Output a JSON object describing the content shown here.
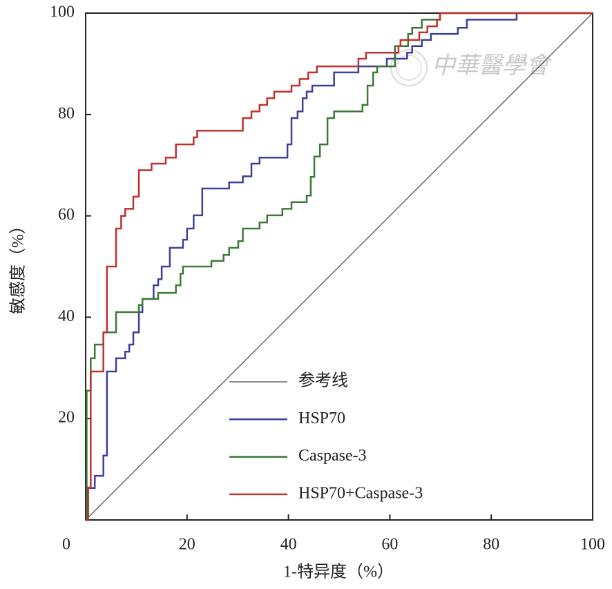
{
  "chart_data": {
    "type": "line",
    "xlabel": "1-特异度（%）",
    "ylabel": "敏感度（%）",
    "watermark": "中華醫學會",
    "xlim": [
      0,
      100
    ],
    "ylim": [
      0,
      100
    ],
    "xticks": [
      0,
      20,
      40,
      60,
      80,
      100
    ],
    "yticks": [
      20,
      40,
      60,
      80,
      100
    ],
    "legend": "lower-right",
    "series": [
      {
        "name": "参考线",
        "color": "#6e6060",
        "x": [
          0,
          100
        ],
        "y": [
          0,
          100
        ]
      },
      {
        "name": "HSP70",
        "color": "#3d3f9b",
        "x": [
          0,
          0.3,
          0.3,
          1.8,
          1.8,
          3.5,
          3.5,
          4.2,
          4.2,
          6,
          6,
          7.8,
          7.8,
          8.6,
          8.6,
          9.4,
          9.4,
          10.5,
          10.5,
          11.2,
          11.2,
          13.4,
          13.4,
          14.3,
          14.3,
          15,
          15,
          16.6,
          16.6,
          19.2,
          19.2,
          20,
          20,
          21.3,
          21.3,
          23,
          23,
          28.3,
          28.3,
          31,
          31,
          32.7,
          32.7,
          34.3,
          34.3,
          39.8,
          39.8,
          40.6,
          40.6,
          41.8,
          41.8,
          42.8,
          42.8,
          43.6,
          43.6,
          44.7,
          44.7,
          49,
          49,
          53.8,
          53.8,
          59.4,
          59.4,
          63.4,
          63.4,
          64.4,
          64.4,
          66.3,
          66.3,
          68.1,
          68.1,
          73.4,
          73.4,
          75.2,
          75.2,
          85,
          85,
          100
        ],
        "y": [
          0,
          0,
          6.3,
          6.3,
          8.7,
          8.7,
          12.7,
          12.7,
          29.3,
          29.3,
          31.9,
          31.9,
          33.2,
          33.2,
          34.6,
          34.6,
          37,
          37,
          41,
          41,
          43.6,
          43.6,
          46.3,
          46.3,
          47.5,
          47.5,
          50,
          50,
          53.7,
          53.7,
          55.3,
          55.3,
          57.5,
          57.5,
          60.1,
          60.1,
          65.4,
          65.4,
          66.6,
          66.6,
          67.8,
          67.8,
          70.3,
          70.3,
          71.5,
          71.5,
          74.1,
          74.1,
          79.3,
          79.3,
          80.6,
          80.6,
          83.2,
          83.2,
          84.5,
          84.5,
          85.7,
          85.7,
          88.3,
          88.3,
          89.5,
          89.5,
          91,
          91,
          92.2,
          92.2,
          93.5,
          93.5,
          94.7,
          94.7,
          95.9,
          95.9,
          97.1,
          97.1,
          98.7,
          98.7,
          100,
          100
        ]
      },
      {
        "name": "Caspase-3",
        "color": "#3a7a35",
        "x": [
          0,
          0.2,
          0.2,
          1,
          1,
          1.8,
          1.8,
          3.5,
          3.5,
          6,
          6,
          10.5,
          10.5,
          11.2,
          11.2,
          14.3,
          14.3,
          17.8,
          17.8,
          18.7,
          18.7,
          19.2,
          19.2,
          24.8,
          24.8,
          27.2,
          27.2,
          28.3,
          28.3,
          30.1,
          30.1,
          31,
          31,
          34.3,
          34.3,
          35.8,
          35.8,
          38.8,
          38.8,
          40.6,
          40.6,
          43.6,
          43.6,
          44.4,
          44.4,
          45.1,
          45.1,
          46.2,
          46.2,
          47.7,
          47.7,
          49,
          49,
          54.6,
          54.6,
          55.6,
          55.6,
          56.7,
          56.7,
          57.5,
          57.5,
          61,
          61,
          63.6,
          63.6,
          64.4,
          64.4,
          66.3,
          66.3,
          69.9,
          69.9,
          100
        ],
        "y": [
          0,
          0,
          25.5,
          25.5,
          31.9,
          31.9,
          34.6,
          34.6,
          37,
          37,
          41,
          41,
          42.4,
          42.4,
          43.6,
          43.6,
          44.8,
          44.8,
          46.3,
          46.3,
          48.6,
          48.6,
          50,
          50,
          51.1,
          51.1,
          52.3,
          52.3,
          53.7,
          53.7,
          55,
          55,
          57.5,
          57.5,
          58.7,
          58.7,
          60.1,
          60.1,
          61.4,
          61.4,
          62.7,
          62.7,
          64,
          64,
          67.7,
          67.7,
          71.7,
          71.7,
          74.1,
          74.1,
          79.3,
          79.3,
          80.6,
          80.6,
          81.9,
          81.9,
          85.7,
          85.7,
          88.3,
          88.3,
          89.5,
          89.5,
          93.5,
          93.5,
          95.9,
          95.9,
          97.1,
          97.1,
          98.7,
          98.7,
          100,
          100
        ]
      },
      {
        "name": "HSP70+Caspase-3",
        "color": "#c0302e",
        "x": [
          0,
          0.5,
          0.5,
          1,
          1,
          3.5,
          3.5,
          4.2,
          4.2,
          6,
          6,
          7,
          7,
          7.8,
          7.8,
          9.4,
          9.4,
          10.5,
          10.5,
          13,
          13,
          15.8,
          15.8,
          17.8,
          17.8,
          21.3,
          21.3,
          22,
          22,
          31,
          31,
          32.7,
          32.7,
          34.3,
          34.3,
          35.8,
          35.8,
          37.2,
          37.2,
          40.6,
          40.6,
          42.2,
          42.2,
          43.9,
          43.9,
          45.6,
          45.6,
          53.8,
          53.8,
          55.3,
          55.3,
          61.7,
          61.7,
          62.1,
          62.1,
          65.8,
          65.8,
          67.4,
          67.4,
          69.3,
          69.3,
          69.9,
          69.9,
          100
        ],
        "y": [
          0,
          0,
          6.4,
          6.4,
          29.3,
          29.3,
          37,
          37,
          50,
          50,
          57.5,
          57.5,
          60,
          60,
          61.4,
          61.4,
          63.8,
          63.8,
          69,
          69,
          70.3,
          70.3,
          71.5,
          71.5,
          74.1,
          74.1,
          75.5,
          75.5,
          76.8,
          76.8,
          79.3,
          79.3,
          80.6,
          80.6,
          81.9,
          81.9,
          83.2,
          83.2,
          84.5,
          84.5,
          85.7,
          85.7,
          87,
          87,
          88.3,
          88.3,
          89.5,
          89.5,
          91,
          91,
          92.2,
          92.2,
          93.5,
          93.5,
          94.7,
          94.7,
          96.2,
          96.2,
          97.4,
          97.4,
          98.7,
          98.7,
          100,
          100
        ]
      }
    ]
  }
}
